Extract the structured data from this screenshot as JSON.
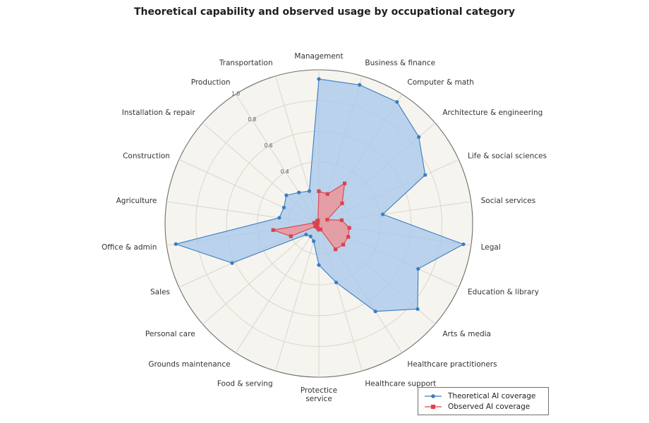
{
  "title": "Theoretical capability and observed usage by occupational category",
  "chart_data": {
    "type": "radar",
    "title": "Theoretical capability and observed usage by occupational category",
    "categories": [
      "Management",
      "Business & finance",
      "Computer & math",
      "Architecture & engineering",
      "Life & social sciences",
      "Social services",
      "Legal",
      "Education & library",
      "Arts & media",
      "Healthcare practitioners",
      "Healthcare support",
      "Protective service",
      "Food & serving",
      "Grounds maintenance",
      "Personal care",
      "Sales",
      "Office & admin",
      "Agriculture",
      "Construction",
      "Installation & repair",
      "Production",
      "Transportation"
    ],
    "category_labels": [
      "Management",
      "Business & finance",
      "Computer & math",
      "Architecture & engineering",
      "Life & social sciences",
      "Social services",
      "Legal",
      "Education & library",
      "Arts & media",
      "Healthcare practitioners",
      "Healthcare support",
      "Protectice\nservice",
      "Food & serving",
      "Grounds maintenance",
      "Personal care",
      "Sales",
      "Office & admin",
      "Agriculture",
      "Construction",
      "Installation & repair",
      "Production",
      "Transportation"
    ],
    "radial_ticks": [
      0.4,
      0.6,
      0.8,
      1.0
    ],
    "radial_tick_labels": [
      "0.4",
      "0.6",
      "0.8",
      "1.0"
    ],
    "rlim": [
      0,
      1.0
    ],
    "grid": true,
    "legend_position": "bottom-right",
    "series": [
      {
        "name": "Theoretical AI coverage",
        "color": "#3a7cc3",
        "fill": "#a9c8ea",
        "marker": "circle",
        "values": [
          0.94,
          0.94,
          0.94,
          0.86,
          0.76,
          0.42,
          0.95,
          0.71,
          0.85,
          0.68,
          0.4,
          0.27,
          0.12,
          0.1,
          0.11,
          0.62,
          0.94,
          0.26,
          0.25,
          0.28,
          0.24,
          0.22
        ]
      },
      {
        "name": "Observed AI coverage",
        "color": "#d9434f",
        "fill": "#ef8f91",
        "marker": "square",
        "values": [
          0.21,
          0.2,
          0.31,
          0.2,
          0.06,
          0.15,
          0.2,
          0.21,
          0.21,
          0.2,
          0.04,
          0.04,
          0.03,
          0.02,
          0.03,
          0.2,
          0.3,
          0.03,
          0.01,
          0.01,
          0.02,
          0.02
        ]
      }
    ]
  },
  "legend": {
    "theoretical": "Theoretical AI coverage",
    "observed": "Observed AI coverage"
  }
}
